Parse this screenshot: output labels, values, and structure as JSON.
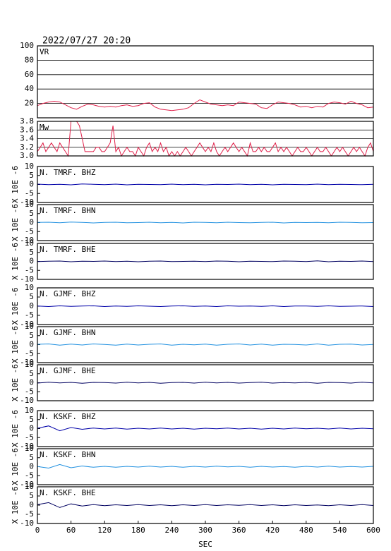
{
  "chart_data": [
    {
      "type": "line",
      "title": "2022/07/27 20:20",
      "label": "VR",
      "color": "#e0204a",
      "grid": true,
      "xlim": [
        0,
        600
      ],
      "ylim": [
        0,
        100
      ],
      "yticks": [
        20,
        40,
        60,
        80,
        100
      ],
      "x": [
        0,
        10,
        20,
        30,
        40,
        50,
        60,
        70,
        80,
        90,
        100,
        110,
        120,
        130,
        140,
        150,
        160,
        170,
        180,
        190,
        200,
        210,
        220,
        230,
        240,
        250,
        260,
        270,
        280,
        290,
        300,
        310,
        320,
        330,
        340,
        350,
        360,
        370,
        380,
        390,
        400,
        410,
        420,
        430,
        440,
        450,
        460,
        470,
        480,
        490,
        500,
        510,
        520,
        530,
        540,
        550,
        560,
        570,
        580,
        590,
        600
      ],
      "values": [
        17,
        20,
        22,
        23,
        22,
        18,
        14,
        12,
        16,
        19,
        18,
        16,
        15,
        16,
        15,
        17,
        18,
        16,
        17,
        20,
        21,
        15,
        12,
        11,
        10,
        11,
        12,
        14,
        20,
        25,
        22,
        19,
        18,
        17,
        18,
        17,
        22,
        21,
        20,
        19,
        14,
        13,
        18,
        22,
        21,
        20,
        18,
        15,
        16,
        14,
        16,
        15,
        20,
        22,
        21,
        19,
        23,
        20,
        18,
        14,
        15
      ]
    },
    {
      "type": "line",
      "label": "Mw",
      "color": "#e0204a",
      "grid": true,
      "xlim": [
        0,
        600
      ],
      "ylim": [
        3.0,
        3.8
      ],
      "yticks": [
        {
          "value": 3,
          "label": "3.0"
        },
        3.2,
        3.4,
        3.6,
        3.8
      ],
      "x": [
        0,
        5,
        10,
        15,
        20,
        25,
        30,
        35,
        40,
        45,
        50,
        55,
        60,
        65,
        70,
        75,
        80,
        85,
        90,
        95,
        100,
        105,
        110,
        115,
        120,
        125,
        130,
        135,
        140,
        145,
        150,
        155,
        160,
        165,
        170,
        175,
        180,
        185,
        190,
        195,
        200,
        205,
        210,
        215,
        220,
        225,
        230,
        235,
        240,
        245,
        250,
        255,
        260,
        265,
        270,
        275,
        280,
        285,
        290,
        295,
        300,
        305,
        310,
        315,
        320,
        325,
        330,
        335,
        340,
        345,
        350,
        355,
        360,
        365,
        370,
        375,
        380,
        385,
        390,
        395,
        400,
        405,
        410,
        415,
        420,
        425,
        430,
        435,
        440,
        445,
        450,
        455,
        460,
        465,
        470,
        475,
        480,
        485,
        490,
        495,
        500,
        505,
        510,
        515,
        520,
        525,
        530,
        535,
        540,
        545,
        550,
        555,
        560,
        565,
        570,
        575,
        580,
        585,
        590,
        595,
        600
      ],
      "values": [
        3.1,
        3.2,
        3.3,
        3.1,
        3.2,
        3.3,
        3.2,
        3.1,
        3.3,
        3.2,
        3.1,
        3.0,
        3.8,
        3.8,
        3.8,
        3.7,
        3.4,
        3.1,
        3.1,
        3.1,
        3.1,
        3.2,
        3.2,
        3.1,
        3.1,
        3.2,
        3.3,
        3.7,
        3.1,
        3.2,
        3.0,
        3.1,
        3.2,
        3.1,
        3.1,
        3.0,
        3.2,
        3.1,
        3.0,
        3.2,
        3.3,
        3.1,
        3.2,
        3.1,
        3.3,
        3.1,
        3.2,
        3.0,
        3.1,
        3.0,
        3.1,
        3.0,
        3.1,
        3.2,
        3.1,
        3.0,
        3.1,
        3.2,
        3.3,
        3.2,
        3.1,
        3.2,
        3.1,
        3.3,
        3.1,
        3.0,
        3.1,
        3.2,
        3.1,
        3.2,
        3.3,
        3.2,
        3.1,
        3.2,
        3.1,
        3.0,
        3.3,
        3.1,
        3.1,
        3.2,
        3.1,
        3.2,
        3.1,
        3.1,
        3.2,
        3.3,
        3.1,
        3.2,
        3.1,
        3.2,
        3.1,
        3.0,
        3.1,
        3.2,
        3.1,
        3.1,
        3.2,
        3.1,
        3.0,
        3.1,
        3.2,
        3.1,
        3.1,
        3.2,
        3.1,
        3.0,
        3.1,
        3.2,
        3.1,
        3.2,
        3.1,
        3.0,
        3.1,
        3.2,
        3.1,
        3.2,
        3.1,
        3.0,
        3.2,
        3.3,
        3.1
      ]
    },
    {
      "type": "line",
      "label": "N. TMRF. BHZ",
      "ylabel": "X 10E -6",
      "color": "#0000a8",
      "xlim": [
        0,
        600
      ],
      "ylim": [
        -10,
        10
      ],
      "yticks": [
        -10,
        -5,
        0,
        5,
        10
      ],
      "x": [
        0,
        20,
        40,
        60,
        80,
        100,
        120,
        140,
        160,
        180,
        200,
        220,
        240,
        260,
        280,
        300,
        320,
        340,
        360,
        380,
        400,
        420,
        440,
        460,
        480,
        500,
        520,
        540,
        560,
        580,
        600
      ],
      "values": [
        0.2,
        -0.1,
        0.1,
        -0.2,
        0.3,
        0.1,
        -0.1,
        0.2,
        -0.2,
        0.1,
        0,
        -0.1,
        0.2,
        -0.1,
        0.1,
        -0.2,
        0.1,
        0,
        0.2,
        -0.1,
        0.1,
        -0.2,
        0.1,
        0,
        -0.1,
        0.2,
        -0.1,
        0.1,
        0,
        -0.1,
        0.1
      ]
    },
    {
      "type": "line",
      "label": "N. TMRF. BHN",
      "ylabel": "X 10E -6",
      "color": "#2090e0",
      "xlim": [
        0,
        600
      ],
      "ylim": [
        -10,
        10
      ],
      "yticks": [
        -10,
        -5,
        0,
        5,
        10
      ],
      "x": [
        0,
        20,
        40,
        60,
        80,
        100,
        120,
        140,
        160,
        180,
        200,
        220,
        240,
        260,
        280,
        300,
        320,
        340,
        360,
        380,
        400,
        420,
        440,
        460,
        480,
        500,
        520,
        540,
        560,
        580,
        600
      ],
      "values": [
        0.1,
        0.2,
        -0.1,
        0.3,
        0.1,
        -0.2,
        0.1,
        0.2,
        -0.1,
        0,
        0.2,
        -0.1,
        0.1,
        -0.2,
        0.2,
        0.1,
        -0.1,
        0.2,
        0,
        -0.1,
        0.1,
        0.2,
        -0.2,
        0.1,
        0,
        0.1,
        -0.1,
        0.2,
        0.1,
        -0.1,
        0
      ]
    },
    {
      "type": "line",
      "label": "N. TMRF. BHE",
      "ylabel": "X 10E -6",
      "color": "#000060",
      "xlim": [
        0,
        600
      ],
      "ylim": [
        -10,
        10
      ],
      "yticks": [
        -10,
        -5,
        0,
        5,
        10
      ],
      "x": [
        0,
        20,
        40,
        60,
        80,
        100,
        120,
        140,
        160,
        180,
        200,
        220,
        240,
        260,
        280,
        300,
        320,
        340,
        360,
        380,
        400,
        420,
        440,
        460,
        480,
        500,
        520,
        540,
        560,
        580,
        600
      ],
      "values": [
        -0.1,
        0.1,
        0.2,
        -0.2,
        0.1,
        0,
        0.2,
        -0.1,
        0.1,
        -0.2,
        0.1,
        0.2,
        -0.1,
        0,
        0.1,
        -0.1,
        0.2,
        0.1,
        -0.2,
        0.1,
        0,
        -0.1,
        0.2,
        0.1,
        -0.1,
        0.3,
        -0.2,
        0.1,
        0,
        0.2,
        -0.1
      ]
    },
    {
      "type": "line",
      "label": "N. GJMF. BHZ",
      "ylabel": "X 10E -6",
      "color": "#0000a8",
      "xlim": [
        0,
        600
      ],
      "ylim": [
        -10,
        10
      ],
      "yticks": [
        -10,
        -5,
        0,
        5,
        10
      ],
      "x": [
        0,
        20,
        40,
        60,
        80,
        100,
        120,
        140,
        160,
        180,
        200,
        220,
        240,
        260,
        280,
        300,
        320,
        340,
        360,
        380,
        400,
        420,
        440,
        460,
        480,
        500,
        520,
        540,
        560,
        580,
        600
      ],
      "values": [
        0.1,
        -0.2,
        0.2,
        -0.1,
        0.1,
        0.2,
        -0.2,
        0.1,
        -0.1,
        0.2,
        0,
        -0.2,
        0.1,
        0.2,
        -0.1,
        0.1,
        -0.2,
        0.2,
        0,
        0.1,
        -0.1,
        0.2,
        -0.2,
        0.1,
        0.1,
        -0.1,
        0.2,
        -0.1,
        0,
        0.1,
        -0.2
      ]
    },
    {
      "type": "line",
      "label": "N. GJMF. BHN",
      "ylabel": "X 10E -6",
      "color": "#2090e0",
      "xlim": [
        0,
        600
      ],
      "ylim": [
        -10,
        10
      ],
      "yticks": [
        -10,
        -5,
        0,
        5,
        10
      ],
      "x": [
        0,
        20,
        40,
        60,
        80,
        100,
        120,
        140,
        160,
        180,
        200,
        220,
        240,
        260,
        280,
        300,
        320,
        340,
        360,
        380,
        400,
        420,
        440,
        460,
        480,
        500,
        520,
        540,
        560,
        580,
        600
      ],
      "values": [
        0.2,
        0.4,
        -0.3,
        0.3,
        -0.2,
        0.4,
        0.1,
        -0.3,
        0.3,
        -0.2,
        0.2,
        0.4,
        -0.3,
        0.2,
        -0.1,
        0.3,
        -0.3,
        0.2,
        0.4,
        -0.2,
        0.3,
        -0.3,
        0.2,
        0.1,
        -0.2,
        0.4,
        -0.3,
        0.2,
        0.3,
        -0.2,
        0.1
      ]
    },
    {
      "type": "line",
      "label": "N. GJMF. BHE",
      "ylabel": "X 10E -6",
      "color": "#000060",
      "xlim": [
        0,
        600
      ],
      "ylim": [
        -10,
        10
      ],
      "yticks": [
        -10,
        -5,
        0,
        5,
        10
      ],
      "x": [
        0,
        20,
        40,
        60,
        80,
        100,
        120,
        140,
        160,
        180,
        200,
        220,
        240,
        260,
        280,
        300,
        320,
        340,
        360,
        380,
        400,
        420,
        440,
        460,
        480,
        500,
        520,
        540,
        560,
        580,
        600
      ],
      "values": [
        -0.2,
        0.3,
        -0.1,
        0.2,
        -0.3,
        0.2,
        0.1,
        -0.2,
        0.3,
        -0.1,
        0.2,
        -0.3,
        0.1,
        0.2,
        -0.2,
        0.3,
        -0.1,
        0.2,
        -0.2,
        0.1,
        0.3,
        -0.2,
        0.1,
        -0.1,
        0.2,
        -0.3,
        0.2,
        0.1,
        -0.2,
        0.3,
        -0.1
      ]
    },
    {
      "type": "line",
      "label": "N. KSKF. BHZ",
      "ylabel": "X 10E -6",
      "color": "#0000a8",
      "xlim": [
        0,
        600
      ],
      "ylim": [
        -10,
        10
      ],
      "yticks": [
        -10,
        -5,
        0,
        5,
        10
      ],
      "x": [
        0,
        20,
        40,
        60,
        80,
        100,
        120,
        140,
        160,
        180,
        200,
        220,
        240,
        260,
        280,
        300,
        320,
        340,
        360,
        380,
        400,
        420,
        440,
        460,
        480,
        500,
        520,
        540,
        560,
        580,
        600
      ],
      "values": [
        0.2,
        1.5,
        -1.2,
        0.6,
        -0.4,
        0.3,
        -0.2,
        0.3,
        -0.3,
        0.2,
        -0.2,
        0.3,
        -0.2,
        0.2,
        -0.3,
        0.2,
        -0.1,
        0.3,
        -0.2,
        0.2,
        -0.3,
        0.2,
        -0.2,
        0.3,
        -0.1,
        0.2,
        -0.2,
        0.3,
        -0.2,
        0.2,
        -0.1
      ]
    },
    {
      "type": "line",
      "label": "N. KSKF. BHN",
      "ylabel": "X 10E -6",
      "color": "#2090e0",
      "xlim": [
        0,
        600
      ],
      "ylim": [
        -10,
        10
      ],
      "yticks": [
        -10,
        -5,
        0,
        5,
        10
      ],
      "x": [
        0,
        20,
        40,
        60,
        80,
        100,
        120,
        140,
        160,
        180,
        200,
        220,
        240,
        260,
        280,
        300,
        320,
        340,
        360,
        380,
        400,
        420,
        440,
        460,
        480,
        500,
        520,
        540,
        560,
        580,
        600
      ],
      "values": [
        0.1,
        -0.8,
        1.2,
        -0.6,
        0.4,
        -0.3,
        0.2,
        -0.3,
        0.2,
        -0.2,
        0.3,
        -0.2,
        0.2,
        -0.3,
        0.2,
        -0.2,
        0.3,
        -0.1,
        0.2,
        -0.3,
        0.2,
        -0.2,
        0.1,
        -0.3,
        0.2,
        -0.2,
        0.3,
        -0.2,
        0.1,
        -0.2,
        0.2
      ]
    },
    {
      "type": "line",
      "label": "N. KSKF. BHE",
      "ylabel": "X 10E -6",
      "color": "#000060",
      "xlim": [
        0,
        600
      ],
      "ylim": [
        -10,
        10
      ],
      "yticks": [
        -10,
        -5,
        0,
        5,
        10
      ],
      "x": [
        0,
        20,
        40,
        60,
        80,
        100,
        120,
        140,
        160,
        180,
        200,
        220,
        240,
        260,
        280,
        300,
        320,
        340,
        360,
        380,
        400,
        420,
        440,
        460,
        480,
        500,
        520,
        540,
        560,
        580,
        600
      ],
      "values": [
        0.3,
        1.4,
        -1.3,
        0.7,
        -0.5,
        0.3,
        -0.3,
        0.2,
        -0.2,
        0.3,
        -0.2,
        0.2,
        -0.3,
        0.2,
        -0.2,
        0.3,
        -0.2,
        0.2,
        -0.1,
        0.3,
        -0.2,
        0.2,
        -0.3,
        0.2,
        -0.2,
        0.1,
        -0.3,
        0.2,
        -0.2,
        0.3,
        -0.2
      ],
      "xticks": [
        0,
        60,
        120,
        180,
        240,
        300,
        360,
        420,
        480,
        540,
        600
      ],
      "xlabel": "SEC"
    }
  ]
}
